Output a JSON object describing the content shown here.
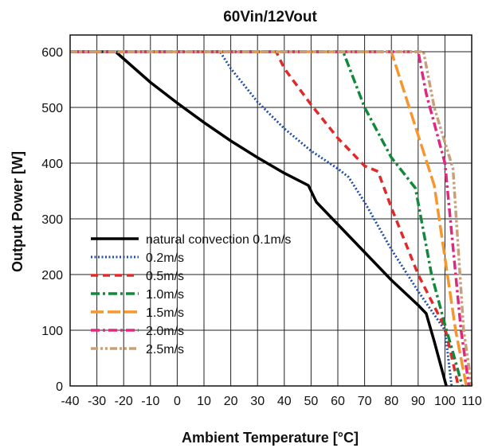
{
  "chart_data": {
    "type": "line",
    "title": "60Vin/12Vout",
    "xlabel": "Ambient Temperature [°C]",
    "ylabel": "Output Power [W]",
    "xlim": [
      -40,
      110
    ],
    "ylim": [
      0,
      630
    ],
    "xticks": [
      -40,
      -30,
      -20,
      -10,
      0,
      10,
      20,
      30,
      40,
      50,
      60,
      70,
      80,
      90,
      100,
      110
    ],
    "yticks": [
      0,
      100,
      200,
      300,
      400,
      500,
      600
    ],
    "grid": true,
    "legend_position": "bottom-left",
    "series": [
      {
        "name": "natural convection 0.1m/s",
        "color": "#000000",
        "dash": "solid",
        "x": [
          -40,
          -23,
          -10,
          0,
          10,
          20,
          30,
          40,
          49,
          52,
          60,
          70,
          80,
          90,
          93,
          96,
          100.5
        ],
        "y": [
          600,
          600,
          545,
          508,
          473,
          440,
          410,
          382,
          360,
          330,
          290,
          240,
          190,
          145,
          130,
          80,
          0
        ]
      },
      {
        "name": "0.2m/s",
        "color": "#1f4fa8",
        "dash": "dot",
        "x": [
          -40,
          16,
          20,
          30,
          40,
          50,
          60,
          64,
          70,
          80,
          90,
          100,
          102.5
        ],
        "y": [
          600,
          600,
          570,
          510,
          462,
          422,
          390,
          375,
          330,
          245,
          170,
          100,
          0
        ]
      },
      {
        "name": "0.5m/s",
        "color": "#e02a2a",
        "dash": "dash",
        "x": [
          -40,
          37,
          40,
          50,
          60,
          70,
          75,
          80,
          90,
          100,
          105
        ],
        "y": [
          600,
          600,
          570,
          505,
          445,
          395,
          385,
          320,
          200,
          105,
          0
        ]
      },
      {
        "name": "1.0m/s",
        "color": "#12893a",
        "dash": "dashdot",
        "x": [
          -40,
          62,
          70,
          80,
          89,
          95,
          100,
          103,
          106.5
        ],
        "y": [
          600,
          600,
          500,
          410,
          355,
          200,
          110,
          60,
          0
        ]
      },
      {
        "name": "1.5m/s",
        "color": "#f7962d",
        "dash": "longdash",
        "x": [
          -40,
          80,
          90,
          96,
          104,
          108
        ],
        "y": [
          600,
          600,
          450,
          360,
          100,
          0
        ]
      },
      {
        "name": "2.0m/s",
        "color": "#e0287f",
        "dash": "dashdot",
        "x": [
          -40,
          90,
          93,
          100,
          106,
          109
        ],
        "y": [
          600,
          600,
          525,
          400,
          100,
          0
        ]
      },
      {
        "name": "2.5m/s",
        "color": "#c7a07a",
        "dash": "dashdotdot",
        "x": [
          -40,
          92,
          96,
          103,
          107,
          110
        ],
        "y": [
          600,
          600,
          500,
          390,
          100,
          0
        ]
      }
    ]
  }
}
